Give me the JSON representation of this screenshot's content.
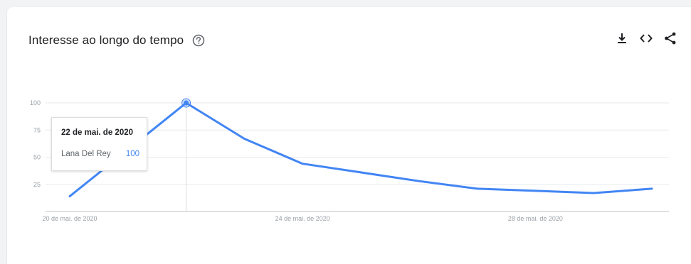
{
  "panel": {
    "title": "Interesse ao longo do tempo",
    "help_icon": "help-circle-icon",
    "actions": [
      {
        "name": "download-icon"
      },
      {
        "name": "embed-icon"
      },
      {
        "name": "share-icon"
      }
    ]
  },
  "colors": {
    "line": "#4285f4",
    "grid": "#e8eaed",
    "axis": "#bdc1c6",
    "tick_text": "#9aa0a6"
  },
  "chart_data": {
    "type": "line",
    "title": "Interesse ao longo do tempo",
    "xlabel": "",
    "ylabel": "",
    "x": [
      "2020-05-20",
      "2020-05-21",
      "2020-05-22",
      "2020-05-23",
      "2020-05-24",
      "2020-05-25",
      "2020-05-26",
      "2020-05-27",
      "2020-05-28",
      "2020-05-29",
      "2020-05-30"
    ],
    "series": [
      {
        "name": "Lana Del Rey",
        "values": [
          14,
          57,
          100,
          67,
          44,
          36,
          28,
          21,
          19,
          17,
          21
        ]
      }
    ],
    "ylim": [
      0,
      100
    ],
    "y_ticks": [
      25,
      50,
      75,
      100
    ],
    "y_tick_labels": [
      "25",
      "50",
      "75",
      "100"
    ],
    "x_ticks": [
      "2020-05-20",
      "2020-05-24",
      "2020-05-28"
    ],
    "x_tick_labels": [
      "20 de mai. de 2020",
      "24 de mai. de 2020",
      "28 de mai. de 2020"
    ],
    "grid": true,
    "legend": "none",
    "highlight": {
      "x": "2020-05-22",
      "date_label": "22 de mai. de 2020",
      "series": "Lana Del Rey",
      "value": "100"
    }
  }
}
